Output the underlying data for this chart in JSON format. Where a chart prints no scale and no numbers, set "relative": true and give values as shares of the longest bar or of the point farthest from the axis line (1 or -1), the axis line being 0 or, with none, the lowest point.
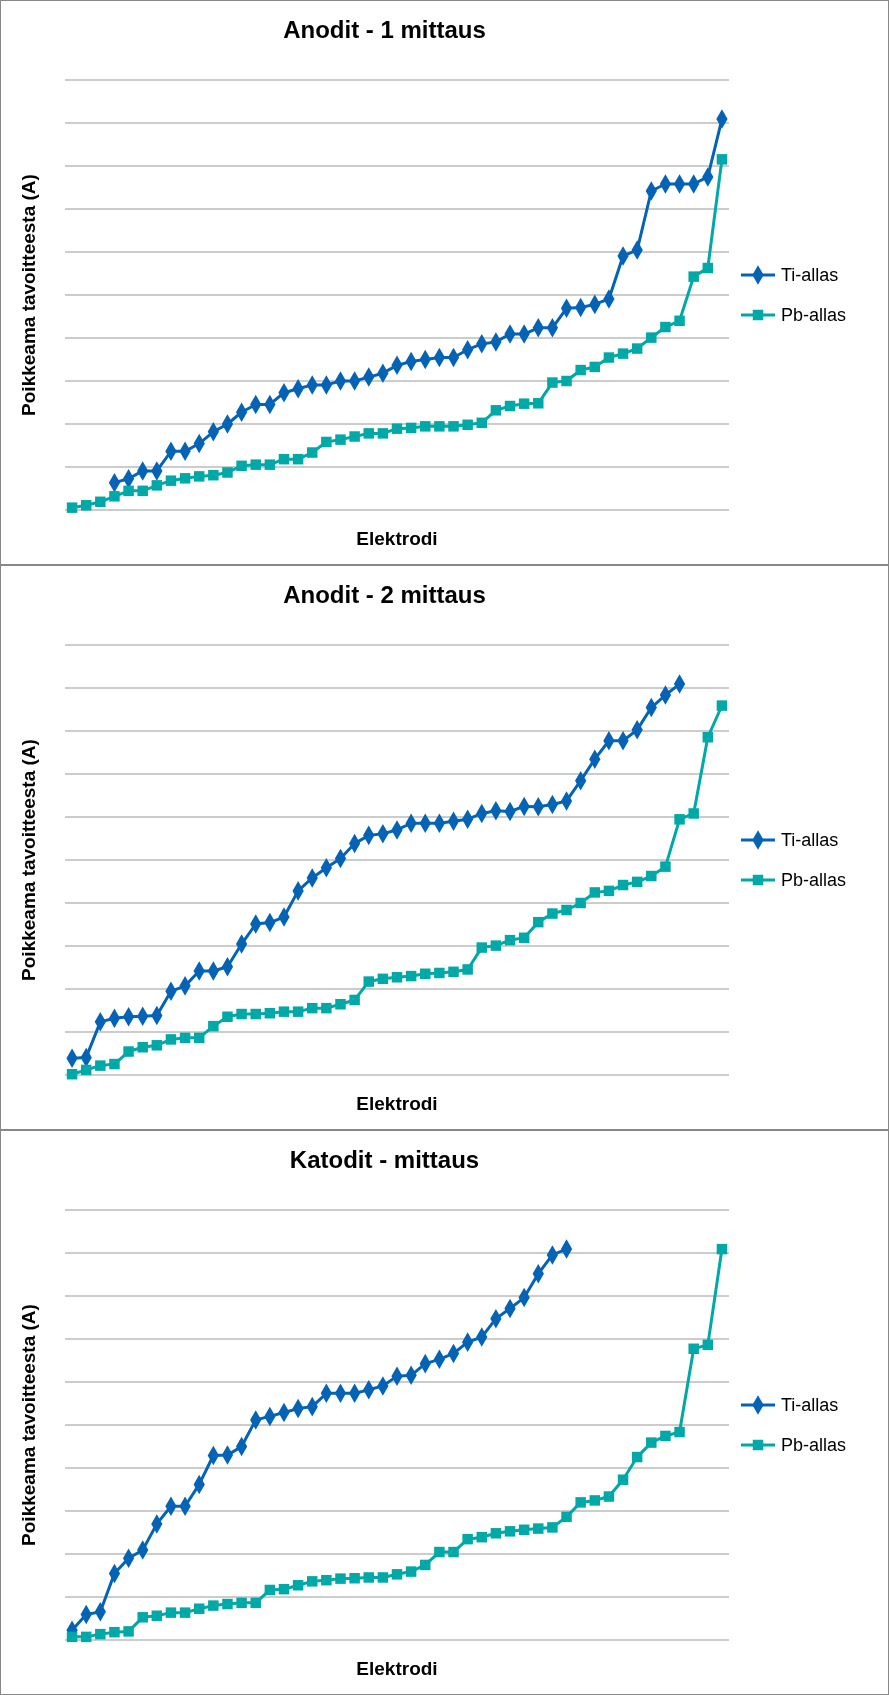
{
  "chart_data": [
    {
      "type": "line",
      "title": "Anodit  - 1 mittaus",
      "xlabel": "Elektrodi",
      "ylabel": "Poikkeama tavoitteesta (A)",
      "relative": true,
      "grid": "y",
      "legend": "right",
      "categories": [
        null,
        null,
        null,
        null,
        null,
        null,
        null,
        null,
        null,
        null,
        null,
        null,
        null,
        null,
        null,
        null,
        null,
        null,
        null,
        null,
        null,
        null,
        null,
        null,
        null,
        null,
        null,
        null,
        null,
        null,
        null,
        null,
        null,
        null,
        null,
        null,
        null,
        null,
        null,
        null,
        null,
        null,
        null,
        null,
        null,
        null,
        null
      ],
      "series": [
        {
          "name": "Ti-allas",
          "color": "#0563b5",
          "marker": "diamond",
          "values": [
            null,
            null,
            null,
            0.07,
            0.08,
            0.1,
            0.1,
            0.15,
            0.15,
            0.17,
            0.2,
            0.22,
            0.25,
            0.27,
            0.27,
            0.3,
            0.31,
            0.32,
            0.32,
            0.33,
            0.33,
            0.34,
            0.35,
            0.37,
            0.38,
            0.385,
            0.39,
            0.39,
            0.41,
            0.425,
            0.43,
            0.45,
            0.45,
            0.466,
            0.466,
            0.516,
            0.518,
            0.526,
            0.54,
            0.65,
            0.665,
            0.816,
            0.834,
            0.834,
            0.834,
            0.852,
            1
          ]
        },
        {
          "name": "Pb-allas",
          "color": "#00a8a8",
          "marker": "square",
          "values": [
            0.006,
            0.012,
            0.021,
            0.035,
            0.049,
            0.049,
            0.063,
            0.075,
            0.081,
            0.086,
            0.089,
            0.096,
            0.113,
            0.116,
            0.116,
            0.13,
            0.13,
            0.147,
            0.174,
            0.18,
            0.188,
            0.196,
            0.196,
            0.208,
            0.21,
            0.214,
            0.214,
            0.214,
            0.218,
            0.223,
            0.255,
            0.266,
            0.272,
            0.273,
            0.326,
            0.33,
            0.358,
            0.366,
            0.39,
            0.4,
            0.413,
            0.441,
            0.468,
            0.484,
            0.597,
            0.619,
            0.897
          ]
        }
      ]
    },
    {
      "type": "line",
      "title": "Anodit  - 2 mittaus",
      "xlabel": "Elektrodi",
      "ylabel": "Poikkeama tavoitteesta (A)",
      "relative": true,
      "grid": "y",
      "legend": "right",
      "categories": [
        null,
        null,
        null,
        null,
        null,
        null,
        null,
        null,
        null,
        null,
        null,
        null,
        null,
        null,
        null,
        null,
        null,
        null,
        null,
        null,
        null,
        null,
        null,
        null,
        null,
        null,
        null,
        null,
        null,
        null,
        null,
        null,
        null,
        null,
        null,
        null,
        null,
        null,
        null,
        null,
        null,
        null,
        null,
        null,
        null,
        null,
        null
      ],
      "series": [
        {
          "name": "Ti-allas",
          "color": "#0563b5",
          "marker": "diamond",
          "values": [
            0.043,
            0.045,
            0.136,
            0.145,
            0.149,
            0.15,
            0.152,
            0.214,
            0.228,
            0.266,
            0.266,
            0.277,
            0.335,
            0.386,
            0.39,
            0.404,
            0.471,
            0.504,
            0.53,
            0.554,
            0.592,
            0.613,
            0.617,
            0.627,
            0.644,
            0.644,
            0.644,
            0.649,
            0.654,
            0.669,
            0.676,
            0.674,
            0.687,
            0.686,
            0.692,
            0.701,
            0.753,
            0.808,
            0.855,
            0.855,
            0.883,
            0.94,
            0.972,
            1,
            null,
            null,
            null
          ]
        },
        {
          "name": "Pb-allas",
          "color": "#00a8a8",
          "marker": "square",
          "values": [
            0.002,
            0.013,
            0.024,
            0.028,
            0.06,
            0.071,
            0.076,
            0.091,
            0.095,
            0.095,
            0.125,
            0.149,
            0.156,
            0.156,
            0.158,
            0.162,
            0.162,
            0.171,
            0.171,
            0.181,
            0.192,
            0.239,
            0.246,
            0.25,
            0.253,
            0.259,
            0.261,
            0.264,
            0.27,
            0.326,
            0.331,
            0.345,
            0.351,
            0.391,
            0.413,
            0.422,
            0.44,
            0.467,
            0.471,
            0.486,
            0.494,
            0.509,
            0.533,
            0.654,
            0.669,
            0.864,
            0.945
          ]
        }
      ]
    },
    {
      "type": "line",
      "title": "Katodit  - mittaus",
      "xlabel": "Elektrodi",
      "ylabel": "Poikkeama tavoitteesta (A)",
      "relative": true,
      "grid": "y",
      "legend": "right",
      "categories": [
        null,
        null,
        null,
        null,
        null,
        null,
        null,
        null,
        null,
        null,
        null,
        null,
        null,
        null,
        null,
        null,
        null,
        null,
        null,
        null,
        null,
        null,
        null,
        null,
        null,
        null,
        null,
        null,
        null,
        null,
        null,
        null,
        null,
        null,
        null,
        null,
        null,
        null,
        null,
        null,
        null,
        null,
        null,
        null,
        null,
        null,
        null
      ],
      "series": [
        {
          "name": "Ti-allas",
          "color": "#0563b5",
          "marker": "diamond",
          "values": [
            0.025,
            0.065,
            0.072,
            0.17,
            0.209,
            0.23,
            0.297,
            0.342,
            0.342,
            0.398,
            0.472,
            0.473,
            0.495,
            0.563,
            0.572,
            0.582,
            0.592,
            0.597,
            0.631,
            0.631,
            0.631,
            0.64,
            0.65,
            0.675,
            0.677,
            0.707,
            0.718,
            0.733,
            0.762,
            0.775,
            0.822,
            0.848,
            0.876,
            0.937,
            0.985,
            1,
            null,
            null,
            null,
            null,
            null,
            null,
            null,
            null,
            null,
            null,
            null
          ]
        },
        {
          "name": "Pb-allas",
          "color": "#00a8a8",
          "marker": "square",
          "values": [
            0.008,
            0.008,
            0.015,
            0.02,
            0.022,
            0.058,
            0.062,
            0.07,
            0.07,
            0.08,
            0.088,
            0.092,
            0.095,
            0.095,
            0.128,
            0.13,
            0.14,
            0.15,
            0.153,
            0.157,
            0.158,
            0.16,
            0.16,
            0.168,
            0.175,
            0.192,
            0.225,
            0.225,
            0.258,
            0.263,
            0.273,
            0.278,
            0.282,
            0.285,
            0.288,
            0.315,
            0.352,
            0.357,
            0.367,
            0.41,
            0.468,
            0.505,
            0.522,
            0.532,
            0.745,
            0.755,
            1
          ]
        }
      ]
    }
  ]
}
